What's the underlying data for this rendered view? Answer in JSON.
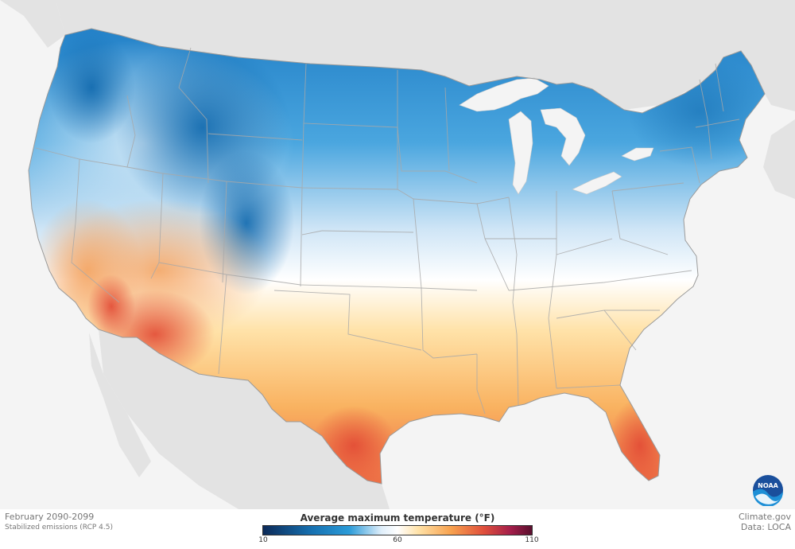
{
  "map": {
    "region": "Contiguous United States",
    "variable_legend": "Average maximum temperature (°F)",
    "scale": {
      "min": 10,
      "mid": 60,
      "max": 110,
      "tick_labels": [
        "10",
        "60",
        "110"
      ],
      "colors": [
        "#0c2a58",
        "#1670b0",
        "#2b9bd8",
        "#dfeefa",
        "#ffffff",
        "#ffe1a6",
        "#f7a14e",
        "#e0503c",
        "#a41e4a",
        "#5a0f2e"
      ]
    }
  },
  "footer": {
    "period": "February 2090-2099",
    "scenario": "Stabilized emissions (RCP 4.5)",
    "source": "Climate.gov",
    "data_credit": "Data: LOCA"
  },
  "logo": {
    "text": "NOAA",
    "icon": "noaa-logo-icon"
  }
}
